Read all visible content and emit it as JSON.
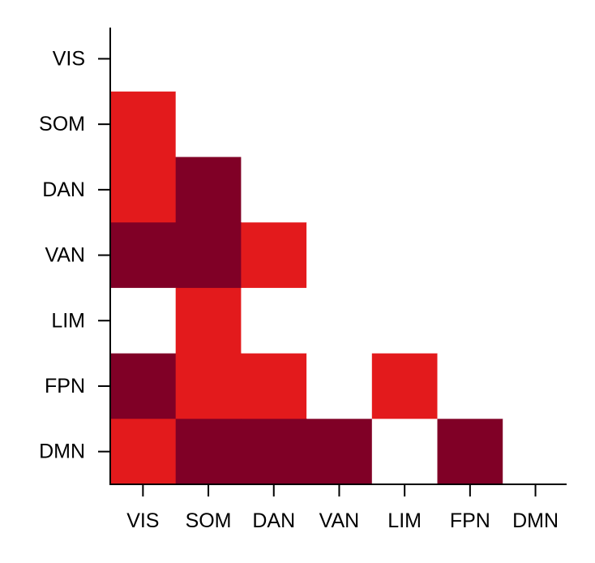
{
  "chart_data": {
    "type": "heatmap",
    "title": "",
    "xlabel": "",
    "ylabel": "",
    "categories_x": [
      "VIS",
      "SOM",
      "DAN",
      "VAN",
      "LIM",
      "FPN",
      "DMN"
    ],
    "categories_y": [
      "VIS",
      "SOM",
      "DAN",
      "VAN",
      "LIM",
      "FPN",
      "DMN"
    ],
    "grid": false,
    "colors": {
      "0": "#ffffff",
      "1": "#e31a1c",
      "2": "#800026"
    },
    "values": [
      [
        0,
        0,
        0,
        0,
        0,
        0,
        0
      ],
      [
        1,
        0,
        0,
        0,
        0,
        0,
        0
      ],
      [
        1,
        2,
        0,
        0,
        0,
        0,
        0
      ],
      [
        2,
        2,
        1,
        0,
        0,
        0,
        0
      ],
      [
        0,
        1,
        0,
        0,
        0,
        0,
        0
      ],
      [
        2,
        1,
        1,
        0,
        1,
        0,
        0
      ],
      [
        1,
        2,
        2,
        2,
        0,
        2,
        0
      ]
    ]
  }
}
